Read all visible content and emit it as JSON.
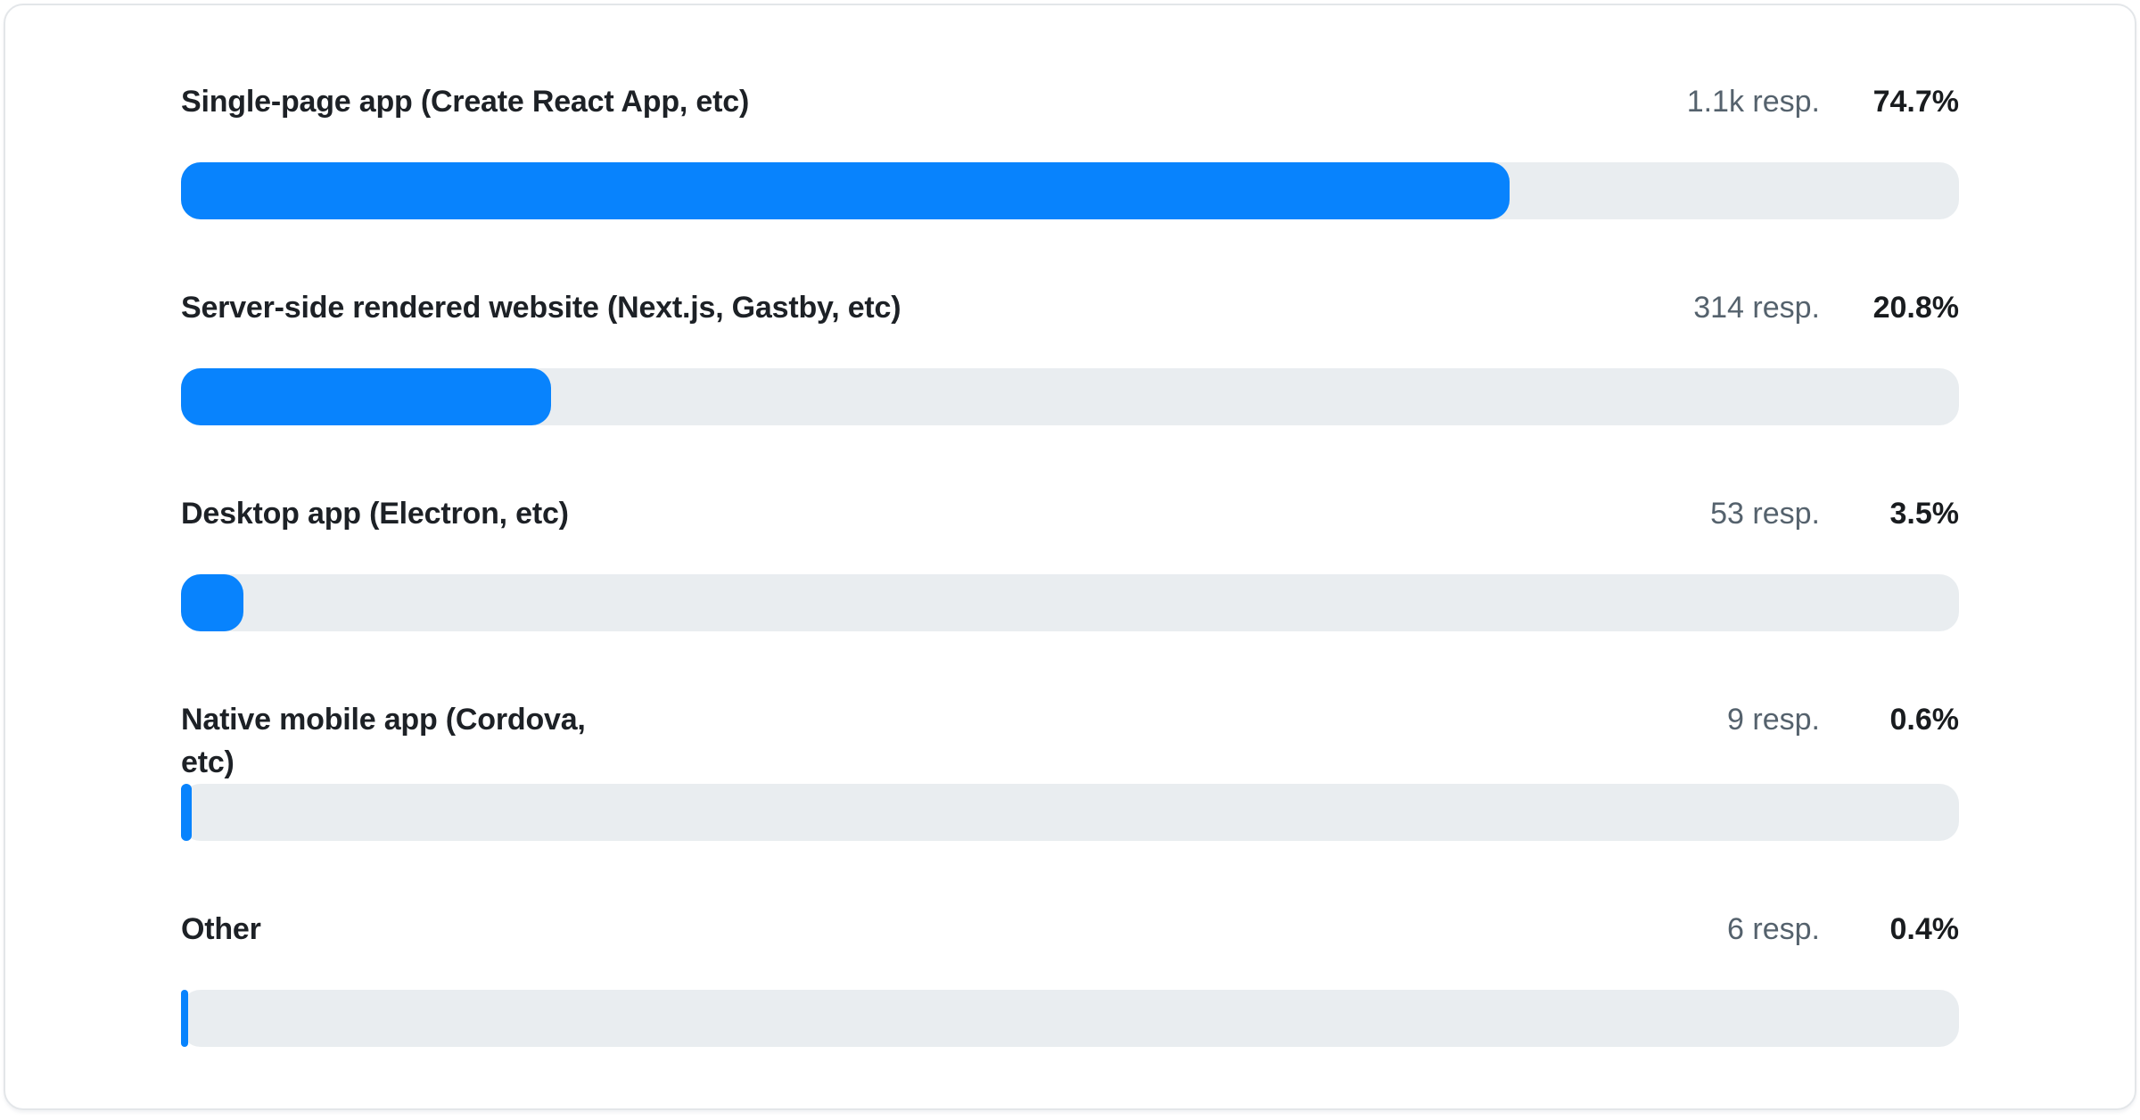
{
  "page": {
    "background": "#ffffff"
  },
  "card": {
    "background": "#ffffff",
    "border_color": "#e3e6e9"
  },
  "colors": {
    "accent": "#0883fd",
    "track": "#e9edf0",
    "label": "#1d2126",
    "muted": "#55626d",
    "percent": "#191c1f"
  },
  "chart_data": {
    "type": "bar",
    "orientation": "horizontal",
    "value_axis": {
      "min": 0,
      "max": 100,
      "unit": "%"
    },
    "grid": false,
    "legend": false,
    "rows": [
      {
        "label": "Single-page app (Create React App, etc)",
        "responses": "1.1k resp.",
        "percent": "74.7%",
        "value": 74.7
      },
      {
        "label": "Server-side rendered website (Next.js, Gastby, etc)",
        "responses": "314 resp.",
        "percent": "20.8%",
        "value": 20.8
      },
      {
        "label": "Desktop app (Electron, etc)",
        "responses": "53 resp.",
        "percent": "3.5%",
        "value": 3.5
      },
      {
        "label": "Native mobile app (Cordova,\netc)",
        "responses": "9 resp.",
        "percent": "0.6%",
        "value": 0.6
      },
      {
        "label": "Other",
        "responses": "6 resp.",
        "percent": "0.4%",
        "value": 0.4
      }
    ]
  }
}
